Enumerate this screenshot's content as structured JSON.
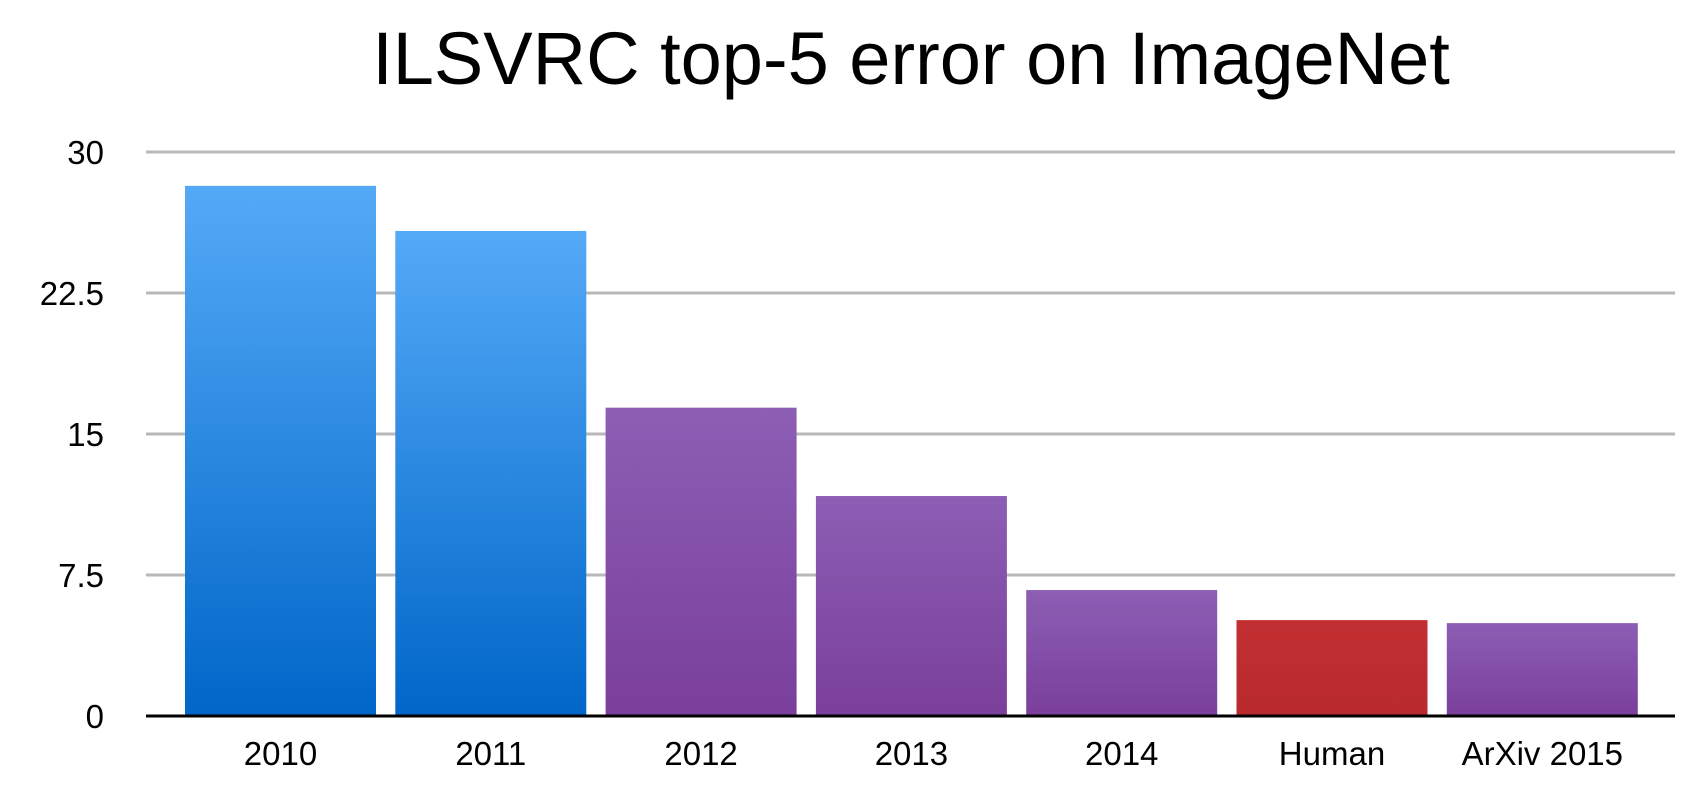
{
  "chart_data": {
    "type": "bar",
    "title": "ILSVRC top-5 error on ImageNet",
    "xlabel": "",
    "ylabel": "",
    "categories": [
      "2010",
      "2011",
      "2012",
      "2013",
      "2014",
      "Human",
      "ArXiv 2015"
    ],
    "values": [
      28.2,
      25.8,
      16.4,
      11.7,
      6.7,
      5.1,
      4.94
    ],
    "ylim": [
      0,
      30
    ],
    "yticks": [
      0,
      7.5,
      15,
      22.5,
      30
    ],
    "ytick_labels": [
      "0",
      "7.5",
      "15",
      "22.5",
      "30"
    ],
    "grid": true,
    "legend": "none",
    "bar_styles": [
      "blue",
      "blue",
      "purple",
      "purple",
      "purple",
      "red",
      "purple"
    ],
    "colors": {
      "blue_top": "#55aaf7",
      "blue_bottom": "#0066c8",
      "purple_top": "#8c5eb4",
      "purple_bottom": "#7a3f9b",
      "red_top": "#c12f31",
      "red_bottom": "#b92a2e",
      "grid": "#b8b8b8",
      "axis": "#000000"
    }
  }
}
